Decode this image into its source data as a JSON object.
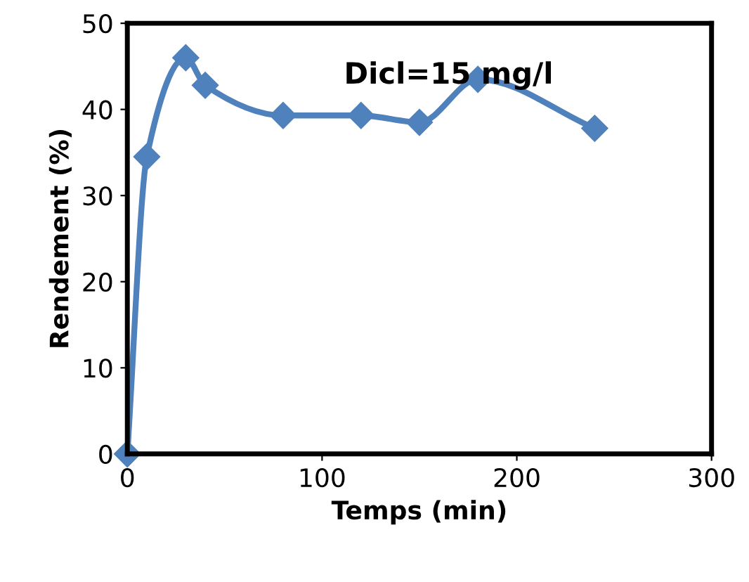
{
  "chart_data": {
    "type": "line",
    "xlabel": "Temps (min)",
    "ylabel": "Rendement (%)",
    "annotations": [
      "Dicl=15 mg/l"
    ],
    "x": [
      0,
      10,
      30,
      40,
      80,
      120,
      150,
      180,
      240
    ],
    "series": [
      {
        "color": "#4f81bd",
        "values": [
          0,
          34.5,
          46,
          42.8,
          39.3,
          39.3,
          38.5,
          43.5,
          37.8
        ]
      }
    ],
    "xlim": [
      0,
      300
    ],
    "xticks": [
      0,
      100,
      200,
      300
    ],
    "ylim": [
      0,
      50
    ],
    "yticks": [
      0,
      10,
      20,
      30,
      40,
      50
    ],
    "marker": "diamond",
    "line_style": "solid",
    "grid": false,
    "legend": false
  }
}
